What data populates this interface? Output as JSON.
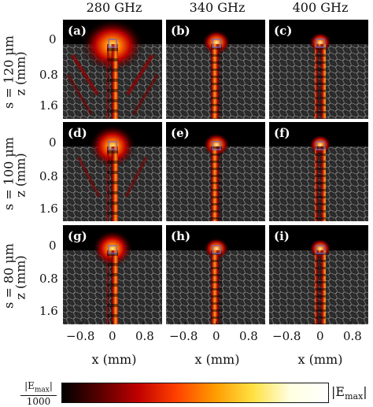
{
  "columns": [
    "280 GHz",
    "340 GHz",
    "400 GHz"
  ],
  "rows": [
    {
      "label": "s = 120 μm",
      "panels": [
        "(a)",
        "(b)",
        "(c)"
      ]
    },
    {
      "label": "s = 100 μm",
      "panels": [
        "(d)",
        "(e)",
        "(f)"
      ]
    },
    {
      "label": "s = 80 μm",
      "panels": [
        "(g)",
        "(h)",
        "(i)"
      ]
    }
  ],
  "axes": {
    "y_label": "z (mm)",
    "y_ticks": [
      "0",
      "0.8",
      "1.6"
    ],
    "x_label": "x (mm)",
    "x_ticks": [
      "−0.8",
      "0",
      "0.8"
    ]
  },
  "colorbar": {
    "min_numerator": "|E",
    "min_sub": "max",
    "min_numerator_end": "|",
    "min_denominator": "1000",
    "max_label": "|E",
    "max_sub": "max",
    "max_end": "|",
    "colors": [
      "#000000",
      "#5a0000",
      "#c00000",
      "#ff4000",
      "#ff9a00",
      "#ffe040",
      "#ffffe0",
      "#ffffff"
    ]
  }
}
